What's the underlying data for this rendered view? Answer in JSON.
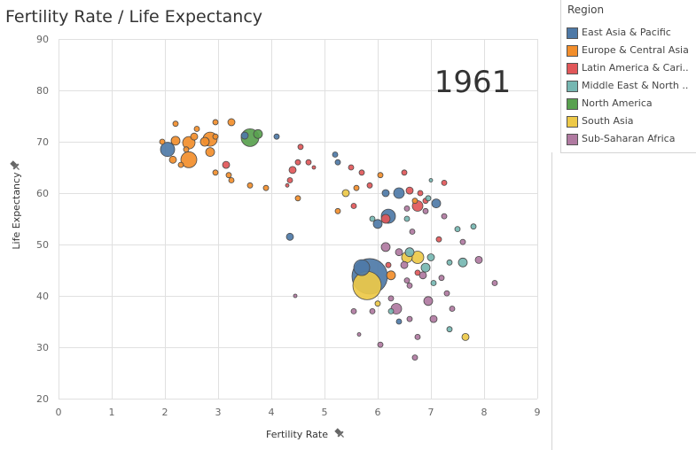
{
  "title": "Fertility Rate / Life Expectancy",
  "legend": {
    "title": "Region",
    "items": [
      {
        "label": "East Asia & Pacific",
        "color": "#4e79a7"
      },
      {
        "label": "Europe & Central Asia",
        "color": "#f28e2b"
      },
      {
        "label": "Latin America & Cari..",
        "color": "#e15759"
      },
      {
        "label": "Middle East & North ..",
        "color": "#76b7b2"
      },
      {
        "label": "North America",
        "color": "#59a14f"
      },
      {
        "label": "South Asia",
        "color": "#edc948"
      },
      {
        "label": "Sub-Saharan Africa",
        "color": "#b07aa1"
      }
    ]
  },
  "chart_data": {
    "type": "scatter",
    "year_label": "1961",
    "xlabel": "Fertility Rate",
    "ylabel": "Life Expectancy",
    "xlim": [
      0,
      9
    ],
    "ylim": [
      20,
      90
    ],
    "xticks": [
      0,
      1,
      2,
      3,
      4,
      5,
      6,
      7,
      8,
      9
    ],
    "yticks": [
      20,
      30,
      40,
      50,
      60,
      70,
      80,
      90
    ],
    "grid": true,
    "pin_icon_count": 2,
    "points": [
      {
        "x": 5.85,
        "y": 43.8,
        "region": "East Asia & Pacific",
        "size": 20
      },
      {
        "x": 5.8,
        "y": 42.0,
        "region": "South Asia",
        "size": 16
      },
      {
        "x": 5.7,
        "y": 45.5,
        "region": "East Asia & Pacific",
        "size": 9
      },
      {
        "x": 2.05,
        "y": 68.5,
        "region": "East Asia & Pacific",
        "size": 8
      },
      {
        "x": 2.45,
        "y": 66.5,
        "region": "Europe & Central Asia",
        "size": 9
      },
      {
        "x": 2.45,
        "y": 69.8,
        "region": "Europe & Central Asia",
        "size": 7
      },
      {
        "x": 2.85,
        "y": 70.5,
        "region": "Europe & Central Asia",
        "size": 8
      },
      {
        "x": 2.75,
        "y": 70.0,
        "region": "Europe & Central Asia",
        "size": 5
      },
      {
        "x": 2.2,
        "y": 70.2,
        "region": "Europe & Central Asia",
        "size": 5
      },
      {
        "x": 2.55,
        "y": 71.0,
        "region": "Europe & Central Asia",
        "size": 4
      },
      {
        "x": 1.95,
        "y": 70.0,
        "region": "Europe & Central Asia",
        "size": 3
      },
      {
        "x": 2.15,
        "y": 66.5,
        "region": "Europe & Central Asia",
        "size": 4
      },
      {
        "x": 2.2,
        "y": 73.5,
        "region": "Europe & Central Asia",
        "size": 3
      },
      {
        "x": 2.4,
        "y": 68.5,
        "region": "Europe & Central Asia",
        "size": 3
      },
      {
        "x": 2.6,
        "y": 72.5,
        "region": "Europe & Central Asia",
        "size": 3
      },
      {
        "x": 2.3,
        "y": 65.5,
        "region": "Europe & Central Asia",
        "size": 3
      },
      {
        "x": 2.85,
        "y": 68.0,
        "region": "Europe & Central Asia",
        "size": 5
      },
      {
        "x": 2.95,
        "y": 71.0,
        "region": "Europe & Central Asia",
        "size": 3
      },
      {
        "x": 3.25,
        "y": 73.8,
        "region": "Europe & Central Asia",
        "size": 4
      },
      {
        "x": 2.95,
        "y": 73.8,
        "region": "Europe & Central Asia",
        "size": 3
      },
      {
        "x": 3.2,
        "y": 63.5,
        "region": "Europe & Central Asia",
        "size": 3
      },
      {
        "x": 3.25,
        "y": 62.5,
        "region": "Europe & Central Asia",
        "size": 3
      },
      {
        "x": 2.95,
        "y": 64.0,
        "region": "Europe & Central Asia",
        "size": 3
      },
      {
        "x": 3.6,
        "y": 61.5,
        "region": "Europe & Central Asia",
        "size": 3
      },
      {
        "x": 3.9,
        "y": 61.0,
        "region": "Europe & Central Asia",
        "size": 3
      },
      {
        "x": 4.5,
        "y": 59.0,
        "region": "Europe & Central Asia",
        "size": 3
      },
      {
        "x": 5.6,
        "y": 61.0,
        "region": "Europe & Central Asia",
        "size": 3
      },
      {
        "x": 6.25,
        "y": 44.0,
        "region": "Europe & Central Asia",
        "size": 5
      },
      {
        "x": 6.05,
        "y": 63.5,
        "region": "Europe & Central Asia",
        "size": 3
      },
      {
        "x": 3.6,
        "y": 70.8,
        "region": "North America",
        "size": 10
      },
      {
        "x": 3.75,
        "y": 71.5,
        "region": "North America",
        "size": 5
      },
      {
        "x": 3.5,
        "y": 71.2,
        "region": "East Asia & Pacific",
        "size": 4
      },
      {
        "x": 3.15,
        "y": 65.5,
        "region": "Latin America & Cari..",
        "size": 4
      },
      {
        "x": 4.1,
        "y": 71.0,
        "region": "East Asia & Pacific",
        "size": 3
      },
      {
        "x": 4.35,
        "y": 51.5,
        "region": "East Asia & Pacific",
        "size": 4
      },
      {
        "x": 4.4,
        "y": 64.5,
        "region": "Latin America & Cari..",
        "size": 4
      },
      {
        "x": 4.55,
        "y": 69.0,
        "region": "Latin America & Cari..",
        "size": 3
      },
      {
        "x": 4.7,
        "y": 66.0,
        "region": "Latin America & Cari..",
        "size": 3
      },
      {
        "x": 4.35,
        "y": 62.5,
        "region": "Latin America & Cari..",
        "size": 3
      },
      {
        "x": 4.5,
        "y": 66.0,
        "region": "Latin America & Cari..",
        "size": 3
      },
      {
        "x": 4.8,
        "y": 65.0,
        "region": "Latin America & Cari..",
        "size": 2
      },
      {
        "x": 4.3,
        "y": 61.5,
        "region": "Latin America & Cari..",
        "size": 2
      },
      {
        "x": 5.2,
        "y": 67.5,
        "region": "East Asia & Pacific",
        "size": 3
      },
      {
        "x": 5.25,
        "y": 66.0,
        "region": "East Asia & Pacific",
        "size": 3
      },
      {
        "x": 5.25,
        "y": 56.5,
        "region": "Europe & Central Asia",
        "size": 3
      },
      {
        "x": 5.4,
        "y": 60.0,
        "region": "South Asia",
        "size": 4
      },
      {
        "x": 5.5,
        "y": 65.0,
        "region": "Latin America & Cari..",
        "size": 3
      },
      {
        "x": 5.55,
        "y": 57.5,
        "region": "Latin America & Cari..",
        "size": 3
      },
      {
        "x": 5.7,
        "y": 64.0,
        "region": "Latin America & Cari..",
        "size": 3
      },
      {
        "x": 5.85,
        "y": 61.5,
        "region": "Latin America & Cari..",
        "size": 3
      },
      {
        "x": 6.15,
        "y": 60.0,
        "region": "East Asia & Pacific",
        "size": 4
      },
      {
        "x": 6.4,
        "y": 60.0,
        "region": "East Asia & Pacific",
        "size": 6
      },
      {
        "x": 6.2,
        "y": 55.5,
        "region": "East Asia & Pacific",
        "size": 8
      },
      {
        "x": 6.15,
        "y": 55.0,
        "region": "Latin America & Cari..",
        "size": 5
      },
      {
        "x": 6.6,
        "y": 60.5,
        "region": "Latin America & Cari..",
        "size": 4
      },
      {
        "x": 6.75,
        "y": 57.5,
        "region": "Latin America & Cari..",
        "size": 6
      },
      {
        "x": 6.7,
        "y": 58.5,
        "region": "Europe & Central Asia",
        "size": 3
      },
      {
        "x": 6.8,
        "y": 60.0,
        "region": "Latin America & Cari..",
        "size": 3
      },
      {
        "x": 6.9,
        "y": 58.5,
        "region": "Latin America & Cari..",
        "size": 3
      },
      {
        "x": 7.1,
        "y": 58.0,
        "region": "East Asia & Pacific",
        "size": 5
      },
      {
        "x": 7.25,
        "y": 62.0,
        "region": "Latin America & Cari..",
        "size": 3
      },
      {
        "x": 6.5,
        "y": 64.0,
        "region": "Latin America & Cari..",
        "size": 3
      },
      {
        "x": 6.55,
        "y": 57.0,
        "region": "Sub-Saharan Africa",
        "size": 3
      },
      {
        "x": 5.9,
        "y": 55.0,
        "region": "Middle East & North ..",
        "size": 3
      },
      {
        "x": 6.55,
        "y": 55.0,
        "region": "Middle East & North ..",
        "size": 3
      },
      {
        "x": 6.0,
        "y": 54.0,
        "region": "East Asia & Pacific",
        "size": 5
      },
      {
        "x": 6.15,
        "y": 49.5,
        "region": "Sub-Saharan Africa",
        "size": 5
      },
      {
        "x": 6.4,
        "y": 48.5,
        "region": "Sub-Saharan Africa",
        "size": 4
      },
      {
        "x": 6.6,
        "y": 48.5,
        "region": "Middle East & North ..",
        "size": 5
      },
      {
        "x": 6.75,
        "y": 47.5,
        "region": "South Asia",
        "size": 7
      },
      {
        "x": 6.55,
        "y": 47.5,
        "region": "South Asia",
        "size": 6
      },
      {
        "x": 6.9,
        "y": 45.5,
        "region": "Middle East & North ..",
        "size": 5
      },
      {
        "x": 7.0,
        "y": 47.5,
        "region": "Middle East & North ..",
        "size": 4
      },
      {
        "x": 7.35,
        "y": 46.5,
        "region": "Middle East & North ..",
        "size": 3
      },
      {
        "x": 7.6,
        "y": 46.5,
        "region": "Middle East & North ..",
        "size": 5
      },
      {
        "x": 7.9,
        "y": 47.0,
        "region": "Sub-Saharan Africa",
        "size": 4
      },
      {
        "x": 8.2,
        "y": 42.5,
        "region": "Sub-Saharan Africa",
        "size": 3
      },
      {
        "x": 6.2,
        "y": 46.0,
        "region": "Latin America & Cari..",
        "size": 3
      },
      {
        "x": 6.5,
        "y": 46.0,
        "region": "Sub-Saharan Africa",
        "size": 4
      },
      {
        "x": 6.85,
        "y": 44.0,
        "region": "Sub-Saharan Africa",
        "size": 4
      },
      {
        "x": 6.55,
        "y": 43.0,
        "region": "Sub-Saharan Africa",
        "size": 3
      },
      {
        "x": 6.75,
        "y": 44.5,
        "region": "Latin America & Cari..",
        "size": 3
      },
      {
        "x": 7.05,
        "y": 42.5,
        "region": "Middle East & North ..",
        "size": 3
      },
      {
        "x": 7.2,
        "y": 43.5,
        "region": "Sub-Saharan Africa",
        "size": 3
      },
      {
        "x": 7.3,
        "y": 40.5,
        "region": "Sub-Saharan Africa",
        "size": 3
      },
      {
        "x": 6.95,
        "y": 39.0,
        "region": "Sub-Saharan Africa",
        "size": 5
      },
      {
        "x": 6.35,
        "y": 37.5,
        "region": "Sub-Saharan Africa",
        "size": 6
      },
      {
        "x": 6.25,
        "y": 39.5,
        "region": "Sub-Saharan Africa",
        "size": 3
      },
      {
        "x": 7.05,
        "y": 35.5,
        "region": "Sub-Saharan Africa",
        "size": 4
      },
      {
        "x": 7.4,
        "y": 37.5,
        "region": "Sub-Saharan Africa",
        "size": 3
      },
      {
        "x": 7.35,
        "y": 33.5,
        "region": "Middle East & North ..",
        "size": 3
      },
      {
        "x": 7.65,
        "y": 32.0,
        "region": "South Asia",
        "size": 4
      },
      {
        "x": 6.75,
        "y": 32.0,
        "region": "Sub-Saharan Africa",
        "size": 3
      },
      {
        "x": 6.7,
        "y": 28.0,
        "region": "Sub-Saharan Africa",
        "size": 3
      },
      {
        "x": 6.05,
        "y": 30.5,
        "region": "Sub-Saharan Africa",
        "size": 3
      },
      {
        "x": 5.55,
        "y": 37.0,
        "region": "Sub-Saharan Africa",
        "size": 3
      },
      {
        "x": 5.65,
        "y": 32.5,
        "region": "Sub-Saharan Africa",
        "size": 2
      },
      {
        "x": 6.0,
        "y": 38.5,
        "region": "South Asia",
        "size": 3
      },
      {
        "x": 6.6,
        "y": 35.5,
        "region": "Sub-Saharan Africa",
        "size": 3
      },
      {
        "x": 6.4,
        "y": 35.0,
        "region": "East Asia & Pacific",
        "size": 3
      },
      {
        "x": 5.9,
        "y": 37.0,
        "region": "Sub-Saharan Africa",
        "size": 3
      },
      {
        "x": 4.45,
        "y": 40.0,
        "region": "Sub-Saharan Africa",
        "size": 2
      },
      {
        "x": 6.25,
        "y": 37.0,
        "region": "Middle East & North ..",
        "size": 3
      },
      {
        "x": 6.6,
        "y": 42.0,
        "region": "Sub-Saharan Africa",
        "size": 3
      },
      {
        "x": 7.15,
        "y": 51.0,
        "region": "Latin America & Cari..",
        "size": 3
      },
      {
        "x": 7.5,
        "y": 53.0,
        "region": "Middle East & North ..",
        "size": 3
      },
      {
        "x": 6.95,
        "y": 59.0,
        "region": "Middle East & North ..",
        "size": 3
      },
      {
        "x": 6.9,
        "y": 56.5,
        "region": "Sub-Saharan Africa",
        "size": 3
      },
      {
        "x": 7.6,
        "y": 50.5,
        "region": "Sub-Saharan Africa",
        "size": 3
      },
      {
        "x": 7.8,
        "y": 53.5,
        "region": "Middle East & North ..",
        "size": 3
      },
      {
        "x": 6.65,
        "y": 52.5,
        "region": "Sub-Saharan Africa",
        "size": 3
      },
      {
        "x": 7.0,
        "y": 62.5,
        "region": "Middle East & North ..",
        "size": 2
      },
      {
        "x": 7.25,
        "y": 55.5,
        "region": "Sub-Saharan Africa",
        "size": 3
      }
    ]
  }
}
